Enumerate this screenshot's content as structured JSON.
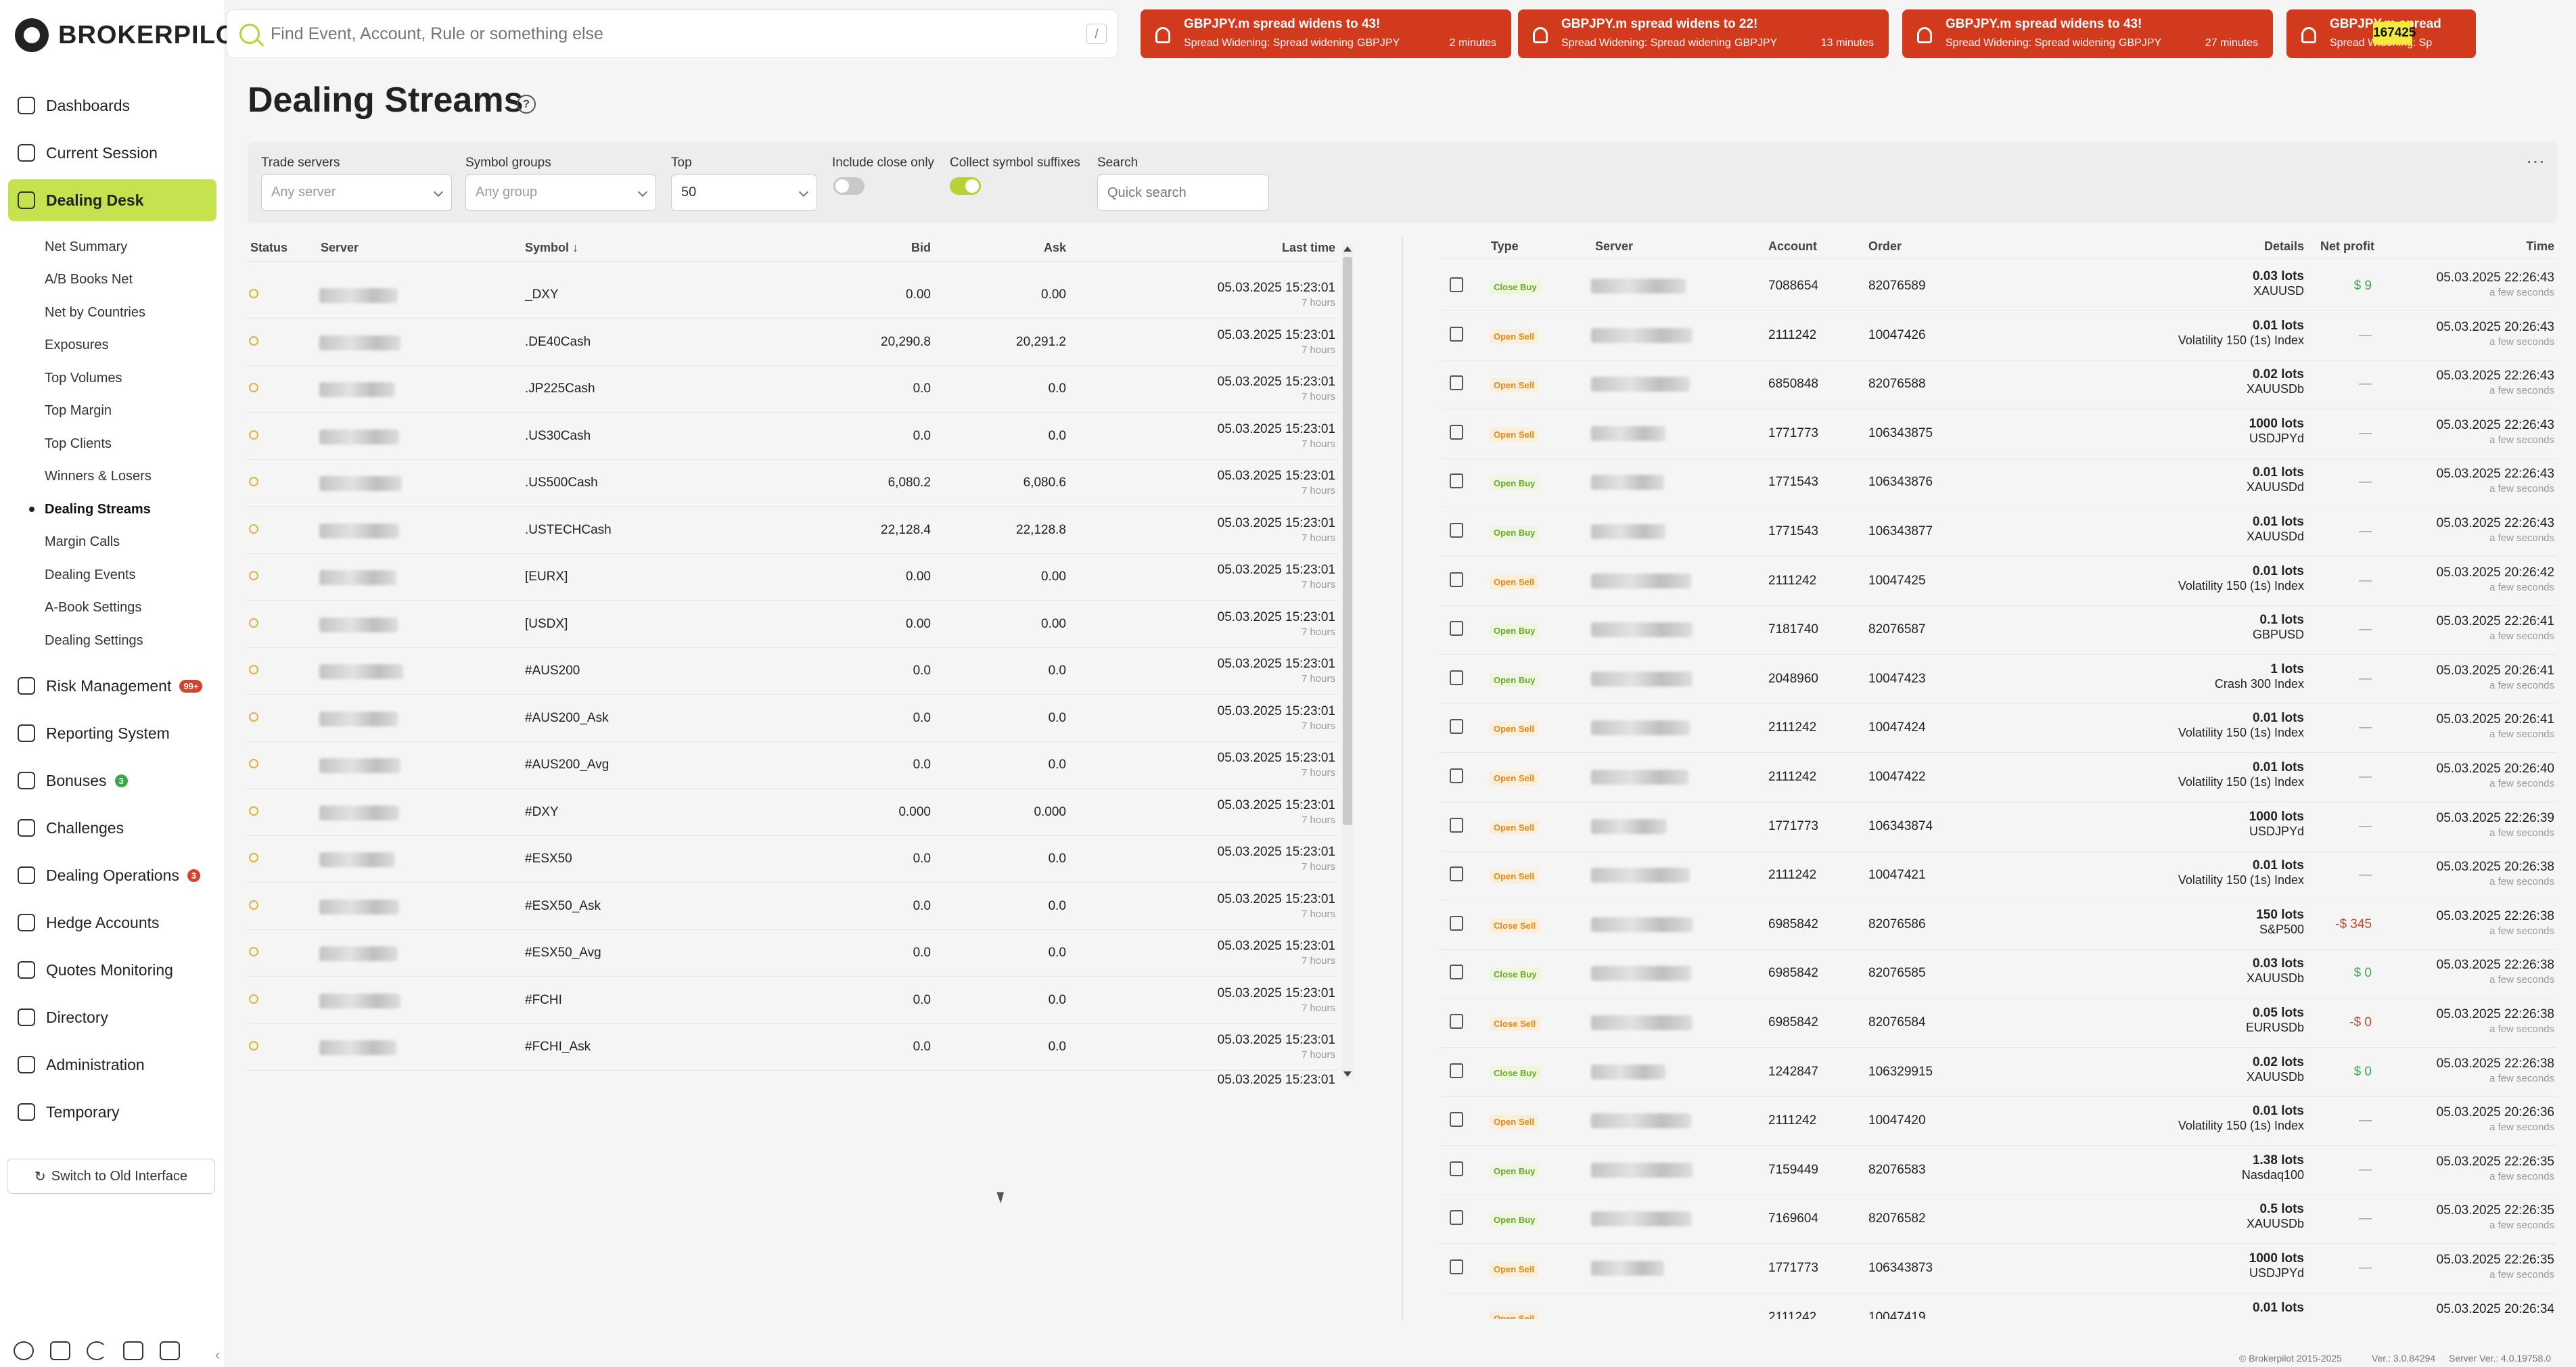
{
  "app": {
    "logo_text": "BROKERPILOT"
  },
  "search": {
    "placeholder": "Find Event, Account, Rule or something else",
    "shortcut": "/"
  },
  "alerts": [
    {
      "title": "GBPJPY.m spread widens to 43!",
      "meta": "Spread Widening: Spread widening",
      "symbol": "GBPJPY",
      "ago": "2 minutes"
    },
    {
      "title": "GBPJPY.m spread widens to 22!",
      "meta": "Spread Widening: Spread widening",
      "symbol": "GBPJPY",
      "ago": "13 minutes"
    },
    {
      "title": "GBPJPY.m spread widens to 43!",
      "meta": "Spread Widening: Spread widening",
      "symbol": "GBPJPY",
      "ago": "27 minutes"
    },
    {
      "title": "GBPJPY.m spread",
      "meta": "Spread Widening: Sp",
      "symbol": "",
      "ago": ""
    }
  ],
  "alert_counter": "167425",
  "sidebar": {
    "items": [
      {
        "label": "Dashboards",
        "icon": "dashboard-icon"
      },
      {
        "label": "Current Session",
        "icon": "session-icon"
      },
      {
        "label": "Dealing Desk",
        "icon": "dealing-desk-icon",
        "active": true
      },
      {
        "label": "Risk Management",
        "icon": "risk-icon",
        "badge": "99+"
      },
      {
        "label": "Reporting System",
        "icon": "report-icon"
      },
      {
        "label": "Bonuses",
        "icon": "bonus-icon",
        "badge": "3"
      },
      {
        "label": "Challenges",
        "icon": "flag-icon"
      },
      {
        "label": "Dealing Operations",
        "icon": "operations-icon",
        "badge": "3"
      },
      {
        "label": "Hedge Accounts",
        "icon": "hedge-icon"
      },
      {
        "label": "Quotes Monitoring",
        "icon": "quotes-icon"
      },
      {
        "label": "Directory",
        "icon": "directory-icon"
      },
      {
        "label": "Administration",
        "icon": "admin-icon"
      },
      {
        "label": "Temporary",
        "icon": "temporary-icon"
      }
    ],
    "sub_items": [
      "Net Summary",
      "A/B Books Net",
      "Net by Countries",
      "Exposures",
      "Top Volumes",
      "Top Margin",
      "Top Clients",
      "Winners & Losers",
      "Dealing Streams",
      "Margin Calls",
      "Dealing Events",
      "A-Book Settings",
      "Dealing Settings"
    ],
    "switch_label": "Switch to Old Interface"
  },
  "page": {
    "title": "Dealing Streams"
  },
  "filters": {
    "trade_servers_label": "Trade servers",
    "trade_servers_placeholder": "Any server",
    "symbol_groups_label": "Symbol groups",
    "symbol_groups_placeholder": "Any group",
    "top_label": "Top",
    "top_value": "50",
    "include_close_label": "Include close only",
    "include_close_on": false,
    "collect_suffix_label": "Collect symbol suffixes",
    "collect_suffix_on": true,
    "search_label": "Search",
    "search_placeholder": "Quick search"
  },
  "quotes": {
    "headers": {
      "status": "Status",
      "server": "Server",
      "symbol": "Symbol",
      "bid": "Bid",
      "ask": "Ask",
      "last_time": "Last time"
    },
    "rows": [
      {
        "symbol": "_DXY",
        "bid": "0.00",
        "ask": "0.00",
        "time": "05.03.2025 15:23:01",
        "ago": "7 hours"
      },
      {
        "symbol": ".DE40Cash",
        "bid": "20,290.8",
        "ask": "20,291.2",
        "time": "05.03.2025 15:23:01",
        "ago": "7 hours"
      },
      {
        "symbol": ".JP225Cash",
        "bid": "0.0",
        "ask": "0.0",
        "time": "05.03.2025 15:23:01",
        "ago": "7 hours"
      },
      {
        "symbol": ".US30Cash",
        "bid": "0.0",
        "ask": "0.0",
        "time": "05.03.2025 15:23:01",
        "ago": "7 hours"
      },
      {
        "symbol": ".US500Cash",
        "bid": "6,080.2",
        "ask": "6,080.6",
        "time": "05.03.2025 15:23:01",
        "ago": "7 hours"
      },
      {
        "symbol": ".USTECHCash",
        "bid": "22,128.4",
        "ask": "22,128.8",
        "time": "05.03.2025 15:23:01",
        "ago": "7 hours"
      },
      {
        "symbol": "[EURX]",
        "bid": "0.00",
        "ask": "0.00",
        "time": "05.03.2025 15:23:01",
        "ago": "7 hours"
      },
      {
        "symbol": "[USDX]",
        "bid": "0.00",
        "ask": "0.00",
        "time": "05.03.2025 15:23:01",
        "ago": "7 hours"
      },
      {
        "symbol": "#AUS200",
        "bid": "0.0",
        "ask": "0.0",
        "time": "05.03.2025 15:23:01",
        "ago": "7 hours"
      },
      {
        "symbol": "#AUS200_Ask",
        "bid": "0.0",
        "ask": "0.0",
        "time": "05.03.2025 15:23:01",
        "ago": "7 hours"
      },
      {
        "symbol": "#AUS200_Avg",
        "bid": "0.0",
        "ask": "0.0",
        "time": "05.03.2025 15:23:01",
        "ago": "7 hours"
      },
      {
        "symbol": "#DXY",
        "bid": "0.000",
        "ask": "0.000",
        "time": "05.03.2025 15:23:01",
        "ago": "7 hours"
      },
      {
        "symbol": "#ESX50",
        "bid": "0.0",
        "ask": "0.0",
        "time": "05.03.2025 15:23:01",
        "ago": "7 hours"
      },
      {
        "symbol": "#ESX50_Ask",
        "bid": "0.0",
        "ask": "0.0",
        "time": "05.03.2025 15:23:01",
        "ago": "7 hours"
      },
      {
        "symbol": "#ESX50_Avg",
        "bid": "0.0",
        "ask": "0.0",
        "time": "05.03.2025 15:23:01",
        "ago": "7 hours"
      },
      {
        "symbol": "#FCHI",
        "bid": "0.0",
        "ask": "0.0",
        "time": "05.03.2025 15:23:01",
        "ago": "7 hours"
      },
      {
        "symbol": "#FCHI_Ask",
        "bid": "0.0",
        "ask": "0.0",
        "time": "05.03.2025 15:23:01",
        "ago": "7 hours"
      }
    ],
    "partial_time": "05.03.2025 15:23:01"
  },
  "deals": {
    "headers": {
      "type": "Type",
      "server": "Server",
      "account": "Account",
      "order": "Order",
      "details": "Details",
      "net_profit": "Net profit",
      "time": "Time"
    },
    "rows": [
      {
        "type": "Close Buy",
        "account": "7088654",
        "order": "82076589",
        "lots": "0.03 lots",
        "symbol": "XAUUSD",
        "profit": "$ 9",
        "profit_kind": "pos",
        "time": "05.03.2025 22:26:43",
        "ago": "a few seconds"
      },
      {
        "type": "Open Sell",
        "account": "2111242",
        "order": "10047426",
        "lots": "0.01 lots",
        "symbol": "Volatility 150 (1s) Index",
        "profit": "—",
        "profit_kind": "dash",
        "time": "05.03.2025 20:26:43",
        "ago": "a few seconds"
      },
      {
        "type": "Open Sell",
        "account": "6850848",
        "order": "82076588",
        "lots": "0.02 lots",
        "symbol": "XAUUSDb",
        "profit": "—",
        "profit_kind": "dash",
        "time": "05.03.2025 22:26:43",
        "ago": "a few seconds"
      },
      {
        "type": "Open Sell",
        "account": "1771773",
        "order": "106343875",
        "lots": "1000 lots",
        "symbol": "USDJPYd",
        "profit": "—",
        "profit_kind": "dash",
        "time": "05.03.2025 22:26:43",
        "ago": "a few seconds"
      },
      {
        "type": "Open Buy",
        "account": "1771543",
        "order": "106343876",
        "lots": "0.01 lots",
        "symbol": "XAUUSDd",
        "profit": "—",
        "profit_kind": "dash",
        "time": "05.03.2025 22:26:43",
        "ago": "a few seconds"
      },
      {
        "type": "Open Buy",
        "account": "1771543",
        "order": "106343877",
        "lots": "0.01 lots",
        "symbol": "XAUUSDd",
        "profit": "—",
        "profit_kind": "dash",
        "time": "05.03.2025 22:26:43",
        "ago": "a few seconds"
      },
      {
        "type": "Open Sell",
        "account": "2111242",
        "order": "10047425",
        "lots": "0.01 lots",
        "symbol": "Volatility 150 (1s) Index",
        "profit": "—",
        "profit_kind": "dash",
        "time": "05.03.2025 20:26:42",
        "ago": "a few seconds"
      },
      {
        "type": "Open Buy",
        "account": "7181740",
        "order": "82076587",
        "lots": "0.1 lots",
        "symbol": "GBPUSD",
        "profit": "—",
        "profit_kind": "dash",
        "time": "05.03.2025 22:26:41",
        "ago": "a few seconds"
      },
      {
        "type": "Open Buy",
        "account": "2048960",
        "order": "10047423",
        "lots": "1 lots",
        "symbol": "Crash 300 Index",
        "profit": "—",
        "profit_kind": "dash",
        "time": "05.03.2025 20:26:41",
        "ago": "a few seconds"
      },
      {
        "type": "Open Sell",
        "account": "2111242",
        "order": "10047424",
        "lots": "0.01 lots",
        "symbol": "Volatility 150 (1s) Index",
        "profit": "—",
        "profit_kind": "dash",
        "time": "05.03.2025 20:26:41",
        "ago": "a few seconds"
      },
      {
        "type": "Open Sell",
        "account": "2111242",
        "order": "10047422",
        "lots": "0.01 lots",
        "symbol": "Volatility 150 (1s) Index",
        "profit": "—",
        "profit_kind": "dash",
        "time": "05.03.2025 20:26:40",
        "ago": "a few seconds"
      },
      {
        "type": "Open Sell",
        "account": "1771773",
        "order": "106343874",
        "lots": "1000 lots",
        "symbol": "USDJPYd",
        "profit": "—",
        "profit_kind": "dash",
        "time": "05.03.2025 22:26:39",
        "ago": "a few seconds"
      },
      {
        "type": "Open Sell",
        "account": "2111242",
        "order": "10047421",
        "lots": "0.01 lots",
        "symbol": "Volatility 150 (1s) Index",
        "profit": "—",
        "profit_kind": "dash",
        "time": "05.03.2025 20:26:38",
        "ago": "a few seconds"
      },
      {
        "type": "Close Sell",
        "account": "6985842",
        "order": "82076586",
        "lots": "150 lots",
        "symbol": "S&P500",
        "profit": "-$ 345",
        "profit_kind": "neg",
        "time": "05.03.2025 22:26:38",
        "ago": "a few seconds"
      },
      {
        "type": "Close Buy",
        "account": "6985842",
        "order": "82076585",
        "lots": "0.03 lots",
        "symbol": "XAUUSDb",
        "profit": "$ 0",
        "profit_kind": "pos",
        "time": "05.03.2025 22:26:38",
        "ago": "a few seconds"
      },
      {
        "type": "Close Sell",
        "account": "6985842",
        "order": "82076584",
        "lots": "0.05 lots",
        "symbol": "EURUSDb",
        "profit": "-$ 0",
        "profit_kind": "neg",
        "time": "05.03.2025 22:26:38",
        "ago": "a few seconds"
      },
      {
        "type": "Close Buy",
        "account": "1242847",
        "order": "106329915",
        "lots": "0.02 lots",
        "symbol": "XAUUSDb",
        "profit": "$ 0",
        "profit_kind": "pos",
        "time": "05.03.2025 22:26:38",
        "ago": "a few seconds"
      },
      {
        "type": "Open Sell",
        "account": "2111242",
        "order": "10047420",
        "lots": "0.01 lots",
        "symbol": "Volatility 150 (1s) Index",
        "profit": "—",
        "profit_kind": "dash",
        "time": "05.03.2025 20:26:36",
        "ago": "a few seconds"
      },
      {
        "type": "Open Buy",
        "account": "7159449",
        "order": "82076583",
        "lots": "1.38 lots",
        "symbol": "Nasdaq100",
        "profit": "—",
        "profit_kind": "dash",
        "time": "05.03.2025 22:26:35",
        "ago": "a few seconds"
      },
      {
        "type": "Open Buy",
        "account": "7169604",
        "order": "82076582",
        "lots": "0.5 lots",
        "symbol": "XAUUSDb",
        "profit": "—",
        "profit_kind": "dash",
        "time": "05.03.2025 22:26:35",
        "ago": "a few seconds"
      },
      {
        "type": "Open Sell",
        "account": "1771773",
        "order": "106343873",
        "lots": "1000 lots",
        "symbol": "USDJPYd",
        "profit": "—",
        "profit_kind": "dash",
        "time": "05.03.2025 22:26:35",
        "ago": "a few seconds"
      }
    ],
    "partial": {
      "type": "Open Sell",
      "account": "2111242",
      "order": "10047419",
      "lots": "0.01 lots",
      "time": "05.03.2025 20:26:34"
    }
  },
  "footer": {
    "copyright": "© Brokerpilot 2015-2025",
    "version": "Ver.: 3.0.84294",
    "server_version": "Server Ver.: 4.0.19758.0"
  },
  "colors": {
    "accent": "#c4e34e",
    "alert": "#d13a1c",
    "profit_pos": "#3aa64a",
    "profit_neg": "#c0492a"
  }
}
